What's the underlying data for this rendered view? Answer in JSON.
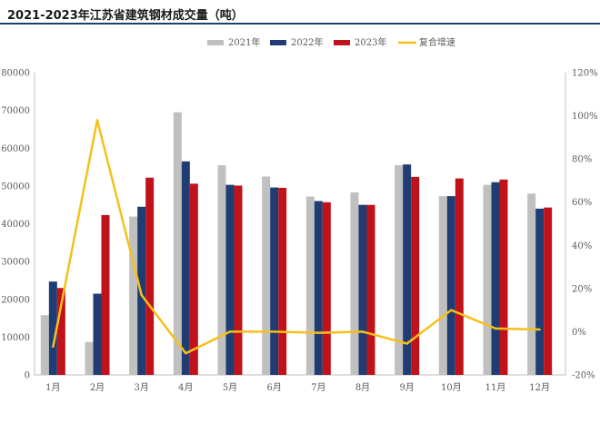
{
  "title": "2021-2023年江苏省建筑钢材成交量（吨）",
  "colors": {
    "s2021": "#c0c0c0",
    "s2022": "#1f3d73",
    "s2023": "#c0121a",
    "growth": "#f5c01a",
    "title_rule": "#1f3f6b",
    "axis": "#bfbfbf"
  },
  "chart_data": {
    "type": "bar",
    "categories": [
      "1月",
      "2月",
      "3月",
      "4月",
      "5月",
      "6月",
      "7月",
      "8月",
      "9月",
      "10月",
      "11月",
      "12月"
    ],
    "series": [
      {
        "name": "2021年",
        "type": "bar",
        "axis": "left",
        "values": [
          15800,
          8700,
          41900,
          69500,
          55500,
          52500,
          47200,
          48300,
          55500,
          47300,
          50300,
          48000
        ]
      },
      {
        "name": "2022年",
        "type": "bar",
        "axis": "left",
        "values": [
          24700,
          21500,
          44500,
          56500,
          50300,
          49600,
          46000,
          45000,
          55700,
          47300,
          51000,
          44000
        ]
      },
      {
        "name": "2023年",
        "type": "bar",
        "axis": "left",
        "values": [
          23000,
          42300,
          52200,
          50600,
          50100,
          49500,
          45700,
          45000,
          52400,
          52000,
          51700,
          44300
        ]
      },
      {
        "name": "复合增速",
        "type": "line",
        "axis": "right",
        "values": [
          -7,
          98,
          17,
          -10,
          0,
          0,
          -0.5,
          0,
          -5.5,
          10,
          1.5,
          1
        ]
      }
    ],
    "left_axis": {
      "ylim": [
        0,
        80000
      ],
      "ticks": [
        "0",
        "10000",
        "20000",
        "30000",
        "40000",
        "50000",
        "60000",
        "70000",
        "80000"
      ]
    },
    "right_axis": {
      "ylim": [
        -20,
        120
      ],
      "ticks": [
        "-20%",
        "0%",
        "20%",
        "40%",
        "60%",
        "80%",
        "100%",
        "120%"
      ]
    },
    "legend_position": "top-center",
    "grid": false
  }
}
